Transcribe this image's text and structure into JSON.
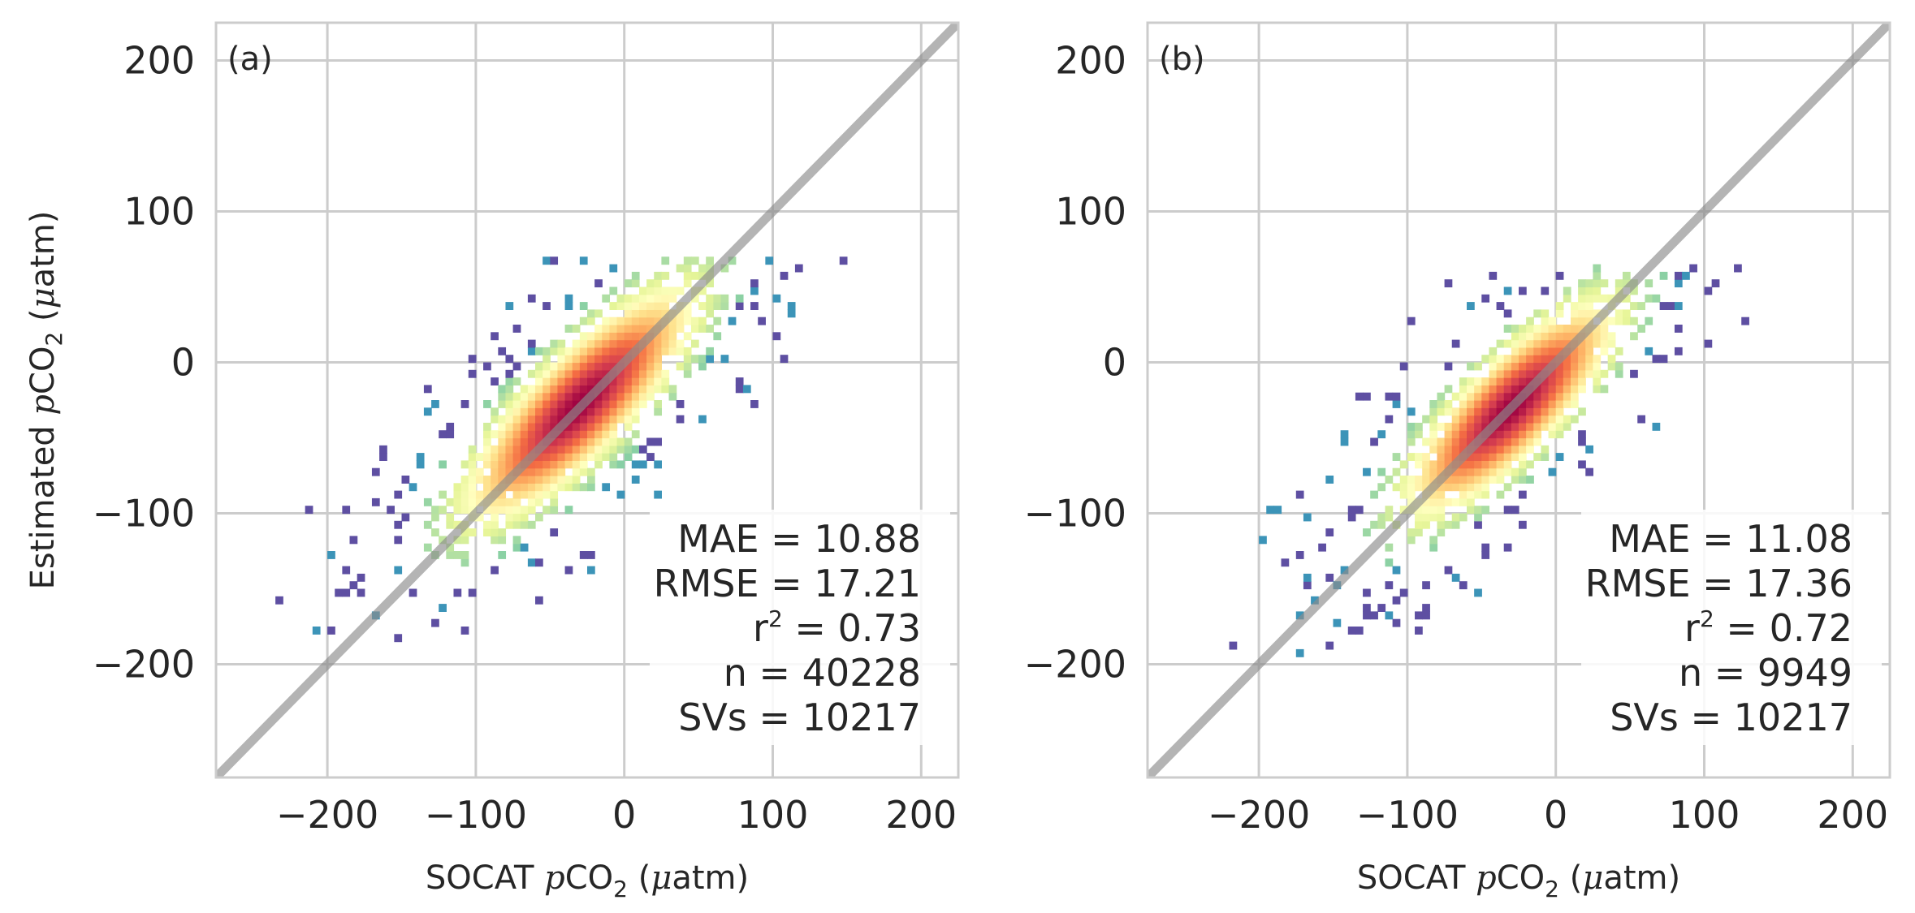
{
  "chart_data": [
    {
      "type": "heatmap",
      "panel_label": "(a)",
      "xlabel_parts": {
        "pre": "SOCAT ",
        "ital": "p",
        "mid": "CO",
        "sub": "2",
        "post": " (",
        "mu": "μ",
        "tail": "atm)"
      },
      "ylabel_parts": {
        "pre": "Estimated ",
        "ital": "p",
        "mid": "CO",
        "sub": "2",
        "post": " (",
        "mu": "μ",
        "tail": "atm)"
      },
      "xlim": [
        -275,
        225
      ],
      "ylim": [
        -275,
        225
      ],
      "xticks": [
        -200,
        -100,
        0,
        100,
        200
      ],
      "yticks": [
        -200,
        -100,
        0,
        100,
        200
      ],
      "xtick_labels": [
        "−200",
        "−100",
        "0",
        "100",
        "200"
      ],
      "ytick_labels": [
        "−200",
        "−100",
        "0",
        "100",
        "200"
      ],
      "grid": true,
      "identity_line": true,
      "colormap": "Spectral_r",
      "stats": [
        {
          "label": "MAE = 10.88"
        },
        {
          "label": "RMSE = 17.21"
        },
        {
          "label": "r",
          "sup": "2",
          "rest": " = 0.73"
        },
        {
          "label": "n = 40228"
        },
        {
          "label": "SVs = 10217"
        }
      ],
      "density": {
        "center": [
          -30,
          -28
        ],
        "major_angle_deg": 45,
        "sigma_major": 55,
        "sigma_minor": 17,
        "x_range": [
          -245,
          190
        ],
        "y_range": [
          -185,
          70
        ],
        "spread": 1.0
      }
    },
    {
      "type": "heatmap",
      "panel_label": "(b)",
      "xlabel_parts": {
        "pre": "SOCAT ",
        "ital": "p",
        "mid": "CO",
        "sub": "2",
        "post": " (",
        "mu": "μ",
        "tail": "atm)"
      },
      "xlim": [
        -275,
        225
      ],
      "ylim": [
        -275,
        225
      ],
      "xticks": [
        -200,
        -100,
        0,
        100,
        200
      ],
      "yticks": [
        -200,
        -100,
        0,
        100,
        200
      ],
      "xtick_labels": [
        "−200",
        "−100",
        "0",
        "100",
        "200"
      ],
      "ytick_labels": [
        "−200",
        "−100",
        "0",
        "100",
        "200"
      ],
      "grid": true,
      "identity_line": true,
      "colormap": "Spectral_r",
      "stats": [
        {
          "label": "MAE = 11.08"
        },
        {
          "label": "RMSE = 17.36"
        },
        {
          "label": "r",
          "sup": "2",
          "rest": " = 0.72"
        },
        {
          "label": "n = 9949"
        },
        {
          "label": "SVs = 10217"
        }
      ],
      "density": {
        "center": [
          -30,
          -30
        ],
        "major_angle_deg": 45,
        "sigma_major": 50,
        "sigma_minor": 16,
        "x_range": [
          -235,
          205
        ],
        "y_range": [
          -195,
          65
        ],
        "spread": 0.8
      }
    }
  ],
  "colors": {
    "grid": "#cccccc",
    "frame": "#cccccc",
    "identity_line": "#8c8c8c",
    "text": "#262626",
    "colormap_stops": [
      "#5e4fa2",
      "#3288bd",
      "#66c2a5",
      "#abdda4",
      "#e6f598",
      "#ffffbf",
      "#fee08b",
      "#fdae61",
      "#f46d43",
      "#d53e4f",
      "#9e0142"
    ]
  }
}
